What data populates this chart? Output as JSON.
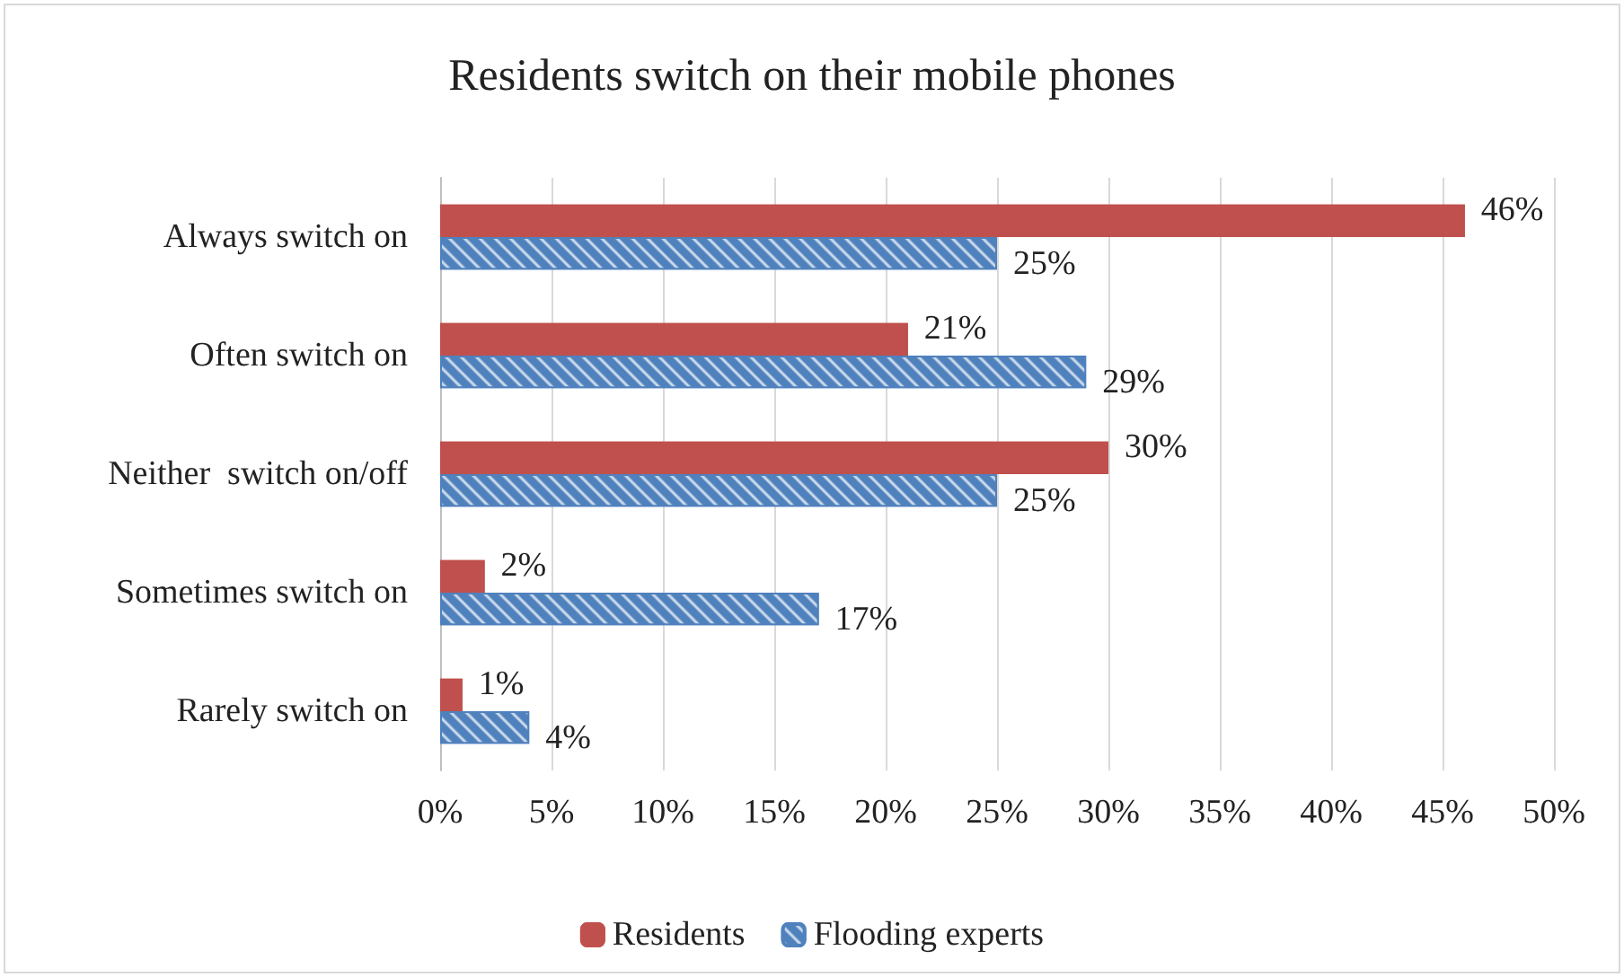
{
  "chart_data": {
    "type": "bar",
    "orientation": "horizontal",
    "title": "Residents switch on their mobile phones",
    "categories": [
      "Always switch on",
      "Often switch on",
      "Neither  switch on/off",
      "Sometimes switch on",
      "Rarely switch on"
    ],
    "series": [
      {
        "name": "Residents",
        "color": "#c0504d",
        "values": [
          46,
          21,
          30,
          2,
          1
        ],
        "value_labels": [
          "46%",
          "21%",
          "30%",
          "2%",
          "1%"
        ]
      },
      {
        "name": "Flooding experts",
        "color": "#4f81bd",
        "values": [
          25,
          29,
          25,
          17,
          4
        ],
        "value_labels": [
          "25%",
          "29%",
          "25%",
          "17%",
          "4%"
        ]
      }
    ],
    "xlim": [
      0,
      50
    ],
    "xticks": [
      {
        "value": 0,
        "label": "0%"
      },
      {
        "value": 5,
        "label": "5%"
      },
      {
        "value": 10,
        "label": "10%"
      },
      {
        "value": 15,
        "label": "15%"
      },
      {
        "value": 20,
        "label": "20%"
      },
      {
        "value": 25,
        "label": "25%"
      },
      {
        "value": 30,
        "label": "30%"
      },
      {
        "value": 35,
        "label": "35%"
      },
      {
        "value": 40,
        "label": "40%"
      },
      {
        "value": 45,
        "label": "45%"
      },
      {
        "value": 50,
        "label": "50%"
      }
    ],
    "grid": "x",
    "legend": "bottom"
  }
}
